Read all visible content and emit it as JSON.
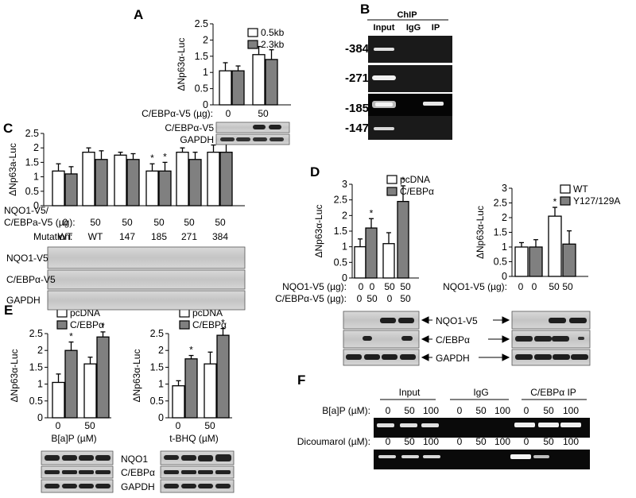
{
  "panels": {
    "A": {
      "letter": "A"
    },
    "B": {
      "letter": "B",
      "chip_header": "ChIP",
      "lanes": [
        "Input",
        "IgG",
        "IP"
      ],
      "regions": [
        "-384",
        "-271",
        "-185",
        "-147"
      ]
    },
    "C": {
      "letter": "C",
      "mutation_label": "Mutation:",
      "mutations": [
        "WT",
        "WT",
        "147",
        "185",
        "271",
        "384"
      ],
      "row1_label": "NQO1-V5/",
      "row2_label": "C/EBPa-V5 (µg):",
      "row_values": [
        "0",
        "50",
        "50",
        "50",
        "50",
        "50"
      ],
      "blots": [
        "NQO1-V5",
        "C/EBPα-V5",
        "GAPDH"
      ]
    },
    "D": {
      "letter": "D",
      "nqo1_label": "NQO1-V5 (µg):",
      "cebp_label": "C/EBPα-V5 (µg):",
      "nqo1_values": [
        "0",
        "0",
        "50",
        "50"
      ],
      "cebp_values": [
        "0",
        "50",
        "0",
        "50"
      ],
      "right_nqo1_values": [
        "0",
        "0",
        "50",
        "50"
      ],
      "arrow_labels": [
        "NQO1-V5",
        "C/EBPα",
        "GAPDH"
      ]
    },
    "E": {
      "letter": "E",
      "left_x_values": [
        "0",
        "50"
      ],
      "right_x_values": [
        "0",
        "50"
      ],
      "left_blots": [
        "NQO1",
        "C/EBPα",
        "GAPDH"
      ]
    },
    "F": {
      "letter": "F",
      "groups": [
        "Input",
        "IgG",
        "C/EBPα IP"
      ],
      "conc": [
        "0",
        "50",
        "100"
      ],
      "row1_label": "B[a]P (µM):",
      "row2_label": "Dicoumarol (µM):"
    }
  },
  "chart_data": [
    {
      "id": "A",
      "type": "bar",
      "ylabel": "ΔNp63α-Luc",
      "ylim": [
        0,
        2.5
      ],
      "yticks": [
        0,
        0.5,
        1,
        1.5,
        2,
        2.5
      ],
      "xlabel": "C/EBPα-V5 (µg):",
      "categories": [
        "0",
        "50"
      ],
      "series": [
        {
          "name": "0.5kb",
          "color": "#ffffff",
          "values": [
            1.05,
            1.55
          ],
          "errors": [
            0.25,
            0.25
          ]
        },
        {
          "name": "2.3kb",
          "color": "#808080",
          "values": [
            1.05,
            1.4
          ],
          "errors": [
            0.15,
            0.3
          ]
        }
      ],
      "blots": [
        "C/EBPα-V5",
        "GAPDH"
      ]
    },
    {
      "id": "C",
      "type": "bar",
      "ylabel": "ΔNp63a-Luc",
      "ylim": [
        0,
        2.5
      ],
      "yticks": [
        0,
        0.5,
        1,
        1.5,
        2,
        2.5
      ],
      "categories": [
        "0",
        "50",
        "50",
        "50",
        "50",
        "50"
      ],
      "series": [
        {
          "name": "",
          "color": "#ffffff",
          "values": [
            1.2,
            1.85,
            1.75,
            1.2,
            1.85,
            1.85
          ],
          "errors": [
            0.25,
            0.15,
            0.1,
            0.25,
            0.15,
            0.25
          ]
        },
        {
          "name": "",
          "color": "#808080",
          "values": [
            1.1,
            1.6,
            1.6,
            1.2,
            1.6,
            1.85
          ],
          "errors": [
            0.25,
            0.3,
            0.2,
            0.3,
            0.25,
            0.3
          ]
        }
      ],
      "stars": [
        "",
        "",
        "",
        "*",
        "",
        ""
      ]
    },
    {
      "id": "D-left",
      "type": "bar",
      "ylabel": "ΔNp63α-Luc",
      "ylim": [
        0,
        3
      ],
      "yticks": [
        0,
        0.5,
        1,
        1.5,
        2,
        2.5,
        3
      ],
      "categories": [
        "1",
        "2",
        "3",
        "4"
      ],
      "series": [
        {
          "name": "pcDNA",
          "color": "#ffffff"
        },
        {
          "name": "C/EBPα",
          "color": "#808080"
        }
      ],
      "bars": [
        {
          "series": 0,
          "value": 1.0,
          "error": 0.25
        },
        {
          "series": 1,
          "value": 1.6,
          "error": 0.3,
          "star": "*"
        },
        {
          "series": 0,
          "value": 1.1,
          "error": 0.35
        },
        {
          "series": 1,
          "value": 2.45,
          "error": 0.5,
          "star": "*"
        }
      ]
    },
    {
      "id": "D-right",
      "type": "bar",
      "ylabel": "ΔNp63α-Luc",
      "ylim": [
        0,
        3
      ],
      "yticks": [
        0,
        0.5,
        1,
        1.5,
        2,
        2.5,
        3
      ],
      "categories": [
        "0",
        "50"
      ],
      "series": [
        {
          "name": "WT",
          "color": "#ffffff",
          "values": [
            1.0,
            2.05
          ],
          "errors": [
            0.15,
            0.3
          ],
          "stars": [
            "",
            "*"
          ]
        },
        {
          "name": "Y127/129A",
          "color": "#808080",
          "values": [
            1.0,
            1.1
          ],
          "errors": [
            0.25,
            0.45
          ]
        }
      ]
    },
    {
      "id": "E-left",
      "type": "bar",
      "ylabel": "ΔNp63α-Luc",
      "ylim": [
        0,
        2.5
      ],
      "yticks": [
        0,
        0.5,
        1,
        1.5,
        2,
        2.5
      ],
      "xlabel": "B[a]P (µM)",
      "categories": [
        "0",
        "50"
      ],
      "series": [
        {
          "name": "pcDNA",
          "color": "#ffffff",
          "values": [
            1.05,
            1.6
          ],
          "errors": [
            0.25,
            0.2
          ]
        },
        {
          "name": "C/EBPα",
          "color": "#808080",
          "values": [
            2.0,
            2.4
          ],
          "errors": [
            0.25,
            0.15
          ],
          "stars": [
            "*",
            "*"
          ]
        }
      ]
    },
    {
      "id": "E-right",
      "type": "bar",
      "ylabel": "ΔNp63α-Luc",
      "ylim": [
        0,
        2.5
      ],
      "yticks": [
        0,
        0.5,
        1,
        1.5,
        2,
        2.5
      ],
      "xlabel": "t-BHQ (µM)",
      "categories": [
        "0",
        "50"
      ],
      "series": [
        {
          "name": "pcDNA",
          "color": "#ffffff",
          "values": [
            0.95,
            1.6
          ],
          "errors": [
            0.15,
            0.35
          ]
        },
        {
          "name": "C/EBPα",
          "color": "#808080",
          "values": [
            1.75,
            2.45
          ],
          "errors": [
            0.1,
            0.2
          ],
          "stars": [
            "*",
            "*"
          ]
        }
      ]
    }
  ]
}
